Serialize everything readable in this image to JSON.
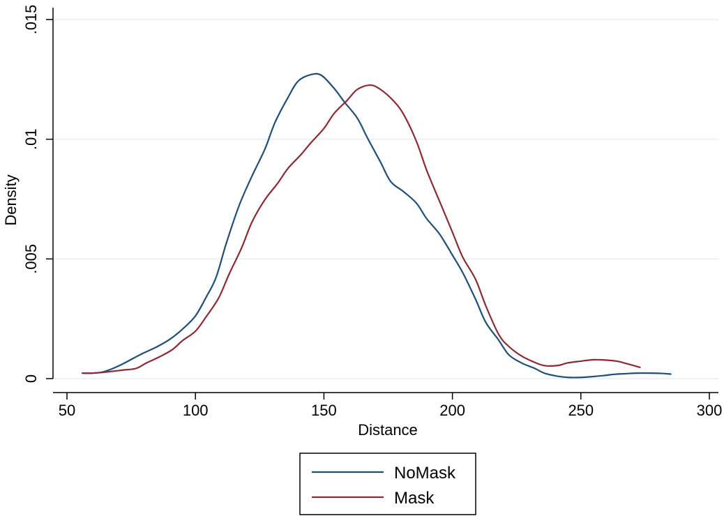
{
  "chart_data": {
    "type": "line",
    "title": "",
    "xlabel": "Distance",
    "ylabel": "Density",
    "xlim": [
      50,
      300
    ],
    "ylim": [
      0,
      0.015
    ],
    "x_ticks": [
      50,
      100,
      150,
      200,
      250,
      300
    ],
    "x_tick_labels": [
      "50",
      "100",
      "150",
      "200",
      "250",
      "300"
    ],
    "y_ticks": [
      0,
      0.005,
      0.01,
      0.015
    ],
    "y_tick_labels": [
      "0",
      ".005",
      ".01",
      ".015"
    ],
    "grid": "horizontal",
    "legend_position": "bottom",
    "series": [
      {
        "name": "NoMask",
        "color": "#1f4e79",
        "x": [
          56,
          60,
          64,
          68,
          72,
          76,
          80,
          85,
          90,
          95,
          100,
          104,
          108,
          112,
          117,
          122,
          127,
          131,
          136,
          140,
          145,
          149,
          154,
          158,
          163,
          167,
          172,
          176,
          181,
          186,
          190,
          195,
          200,
          204,
          209,
          213,
          218,
          222,
          227,
          232,
          236,
          241,
          245,
          250,
          254,
          259,
          263,
          268,
          272,
          277,
          281,
          285
        ],
        "y": [
          0.00023,
          0.00023,
          0.00028,
          0.00043,
          0.00063,
          0.00086,
          0.00108,
          0.00133,
          0.00164,
          0.00207,
          0.00262,
          0.00337,
          0.00422,
          0.00565,
          0.00723,
          0.00846,
          0.00958,
          0.01071,
          0.01174,
          0.01243,
          0.0127,
          0.01267,
          0.01212,
          0.01155,
          0.01088,
          0.01004,
          0.00905,
          0.00823,
          0.00781,
          0.00733,
          0.00668,
          0.00604,
          0.00516,
          0.00443,
          0.00332,
          0.00235,
          0.00161,
          0.00099,
          0.00065,
          0.00043,
          0.00022,
          0.0001,
          5e-05,
          5e-05,
          8e-05,
          0.00013,
          0.00018,
          0.00021,
          0.00023,
          0.00023,
          0.00022,
          0.00019
        ]
      },
      {
        "name": "Mask",
        "color": "#8b2a33",
        "x": [
          56,
          60,
          64,
          68,
          72,
          77,
          81,
          86,
          91,
          95,
          100,
          104,
          109,
          113,
          118,
          122,
          127,
          132,
          136,
          141,
          145,
          150,
          154,
          159,
          163,
          168,
          172,
          177,
          181,
          186,
          190,
          195,
          200,
          204,
          209,
          213,
          218,
          222,
          227,
          232,
          236,
          241,
          245,
          250,
          255,
          259,
          264,
          268,
          273
        ],
        "y": [
          0.00023,
          0.00023,
          0.00026,
          0.00031,
          0.00036,
          0.00043,
          0.00066,
          0.00091,
          0.00121,
          0.00159,
          0.00198,
          0.00256,
          0.00336,
          0.00434,
          0.00547,
          0.00654,
          0.00747,
          0.00816,
          0.00878,
          0.00935,
          0.00986,
          0.01045,
          0.01108,
          0.01162,
          0.01208,
          0.01226,
          0.01208,
          0.01161,
          0.01104,
          0.00991,
          0.0087,
          0.00741,
          0.00612,
          0.00508,
          0.00415,
          0.00304,
          0.00185,
          0.00134,
          0.00094,
          0.00068,
          0.00054,
          0.00055,
          0.00066,
          0.00073,
          0.00079,
          0.00078,
          0.00073,
          0.00062,
          0.00047
        ]
      }
    ]
  }
}
